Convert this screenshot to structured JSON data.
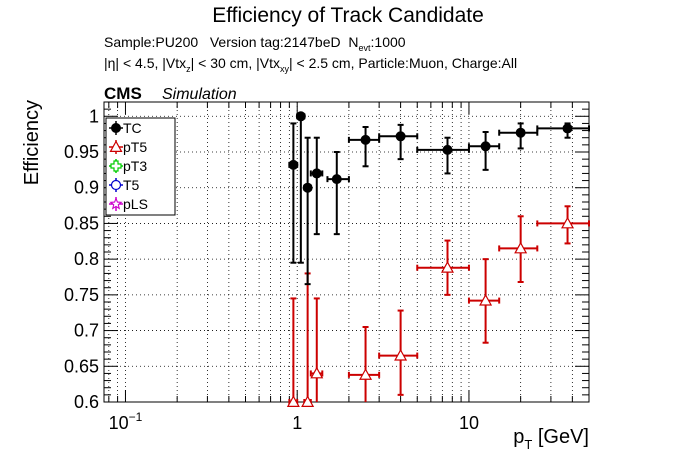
{
  "chart_data": {
    "type": "scatter",
    "title": "Efficiency of Track Candidate",
    "info_line1": {
      "sample": "Sample:PU200",
      "version": "Version tag:2147beD",
      "nevt_prefix": "N",
      "nevt_sub": "evt",
      "nevt_value": ":1000"
    },
    "info_line2": {
      "p1": "|η| < 4.5, |Vtx",
      "s1": "z",
      "p2": "| < 30 cm, |Vtx",
      "s2": "xy",
      "p3": "| < 2.5 cm, Particle:Muon, Charge:All"
    },
    "cms_label": "CMS",
    "simulation_label": "Simulation",
    "xlabel": {
      "main": "p",
      "sub": "T",
      "unit": " [GeV]"
    },
    "ylabel": "Efficiency",
    "xscale": "log",
    "xlim": [
      0.075,
      50
    ],
    "ylim": [
      0.6,
      1.02
    ],
    "grid": true,
    "legend_position": "top-left",
    "x_ticks": [
      {
        "value": 0.1,
        "base": "10",
        "exp": "−1"
      },
      {
        "value": 1,
        "base": "1",
        "exp": ""
      },
      {
        "value": 10,
        "base": "10",
        "exp": ""
      }
    ],
    "y_ticks": [
      {
        "value": 0.6,
        "label": "0.6"
      },
      {
        "value": 0.65,
        "label": "0.65"
      },
      {
        "value": 0.7,
        "label": "0.7"
      },
      {
        "value": 0.75,
        "label": "0.75"
      },
      {
        "value": 0.8,
        "label": "0.8"
      },
      {
        "value": 0.85,
        "label": "0.85"
      },
      {
        "value": 0.9,
        "label": "0.9"
      },
      {
        "value": 0.95,
        "label": "0.95"
      },
      {
        "value": 1,
        "label": "1"
      }
    ],
    "series": [
      {
        "name": "TC",
        "color": "#000000",
        "marker": "filled-circle",
        "points": [
          {
            "x": 0.95,
            "xlo": 0.9,
            "xhi": 1.0,
            "y": 0.932,
            "ylo": 0.795,
            "yhi": 0.99
          },
          {
            "x": 1.05,
            "xlo": 1.0,
            "xhi": 1.1,
            "y": 1.0,
            "ylo": 0.795,
            "yhi": 1.0
          },
          {
            "x": 1.15,
            "xlo": 1.1,
            "xhi": 1.2,
            "y": 0.9,
            "ylo": 0.765,
            "yhi": 0.97
          },
          {
            "x": 1.3,
            "xlo": 1.2,
            "xhi": 1.4,
            "y": 0.92,
            "ylo": 0.835,
            "yhi": 0.97
          },
          {
            "x": 1.7,
            "xlo": 1.5,
            "xhi": 2.0,
            "y": 0.912,
            "ylo": 0.835,
            "yhi": 0.95
          },
          {
            "x": 2.5,
            "xlo": 2.0,
            "xhi": 3.0,
            "y": 0.967,
            "ylo": 0.93,
            "yhi": 0.985
          },
          {
            "x": 4.0,
            "xlo": 3.0,
            "xhi": 5.0,
            "y": 0.972,
            "ylo": 0.94,
            "yhi": 0.988
          },
          {
            "x": 7.5,
            "xlo": 5.0,
            "xhi": 10.0,
            "y": 0.953,
            "ylo": 0.92,
            "yhi": 0.97
          },
          {
            "x": 12.5,
            "xlo": 10.0,
            "xhi": 15.0,
            "y": 0.958,
            "ylo": 0.925,
            "yhi": 0.978
          },
          {
            "x": 20.0,
            "xlo": 15.0,
            "xhi": 25.0,
            "y": 0.977,
            "ylo": 0.955,
            "yhi": 0.99
          },
          {
            "x": 37.5,
            "xlo": 25.0,
            "xhi": 50.0,
            "y": 0.983,
            "ylo": 0.97,
            "yhi": 0.99
          }
        ]
      },
      {
        "name": "pT5",
        "color": "#cc0000",
        "marker": "open-triangle",
        "points": [
          {
            "x": 0.95,
            "xlo": 0.9,
            "xhi": 1.0,
            "y": 0.6,
            "ylo": 0.6,
            "yhi": 0.745
          },
          {
            "x": 1.15,
            "xlo": 1.1,
            "xhi": 1.2,
            "y": 0.6,
            "ylo": 0.6,
            "yhi": 0.78
          },
          {
            "x": 1.3,
            "xlo": 1.2,
            "xhi": 1.4,
            "y": 0.64,
            "ylo": 0.6,
            "yhi": 0.745
          },
          {
            "x": 2.5,
            "xlo": 2.0,
            "xhi": 3.0,
            "y": 0.638,
            "ylo": 0.59,
            "yhi": 0.705
          },
          {
            "x": 4.0,
            "xlo": 3.0,
            "xhi": 5.0,
            "y": 0.665,
            "ylo": 0.61,
            "yhi": 0.728
          },
          {
            "x": 7.5,
            "xlo": 5.0,
            "xhi": 10.0,
            "y": 0.788,
            "ylo": 0.75,
            "yhi": 0.826
          },
          {
            "x": 12.5,
            "xlo": 10.0,
            "xhi": 15.0,
            "y": 0.742,
            "ylo": 0.683,
            "yhi": 0.8
          },
          {
            "x": 20.0,
            "xlo": 15.0,
            "xhi": 25.0,
            "y": 0.815,
            "ylo": 0.768,
            "yhi": 0.86
          },
          {
            "x": 37.5,
            "xlo": 25.0,
            "xhi": 50.0,
            "y": 0.85,
            "ylo": 0.822,
            "yhi": 0.874
          }
        ]
      },
      {
        "name": "pT3",
        "color": "#00cc00",
        "marker": "open-cross",
        "points": []
      },
      {
        "name": "T5",
        "color": "#0000cc",
        "marker": "open-circle",
        "points": []
      },
      {
        "name": "pLS",
        "color": "#cc00cc",
        "marker": "open-star",
        "points": []
      }
    ]
  }
}
